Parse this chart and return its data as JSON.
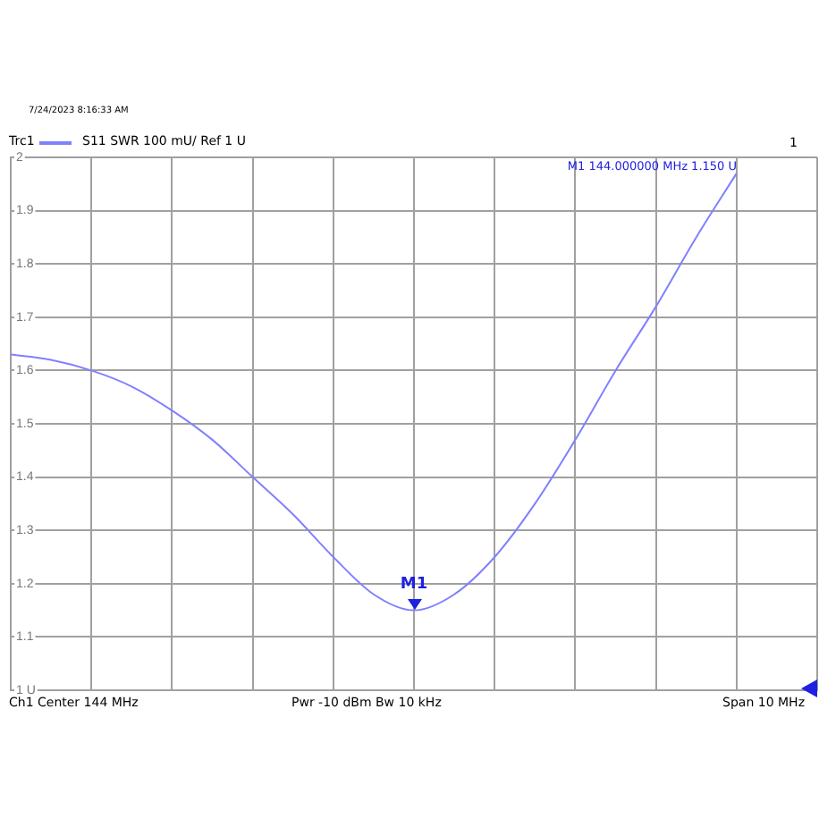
{
  "chart_data": {
    "type": "line",
    "title": "S11 SWR 100 mU/ Ref 1 U",
    "categories": [
      null,
      null,
      null,
      null,
      null,
      null,
      null,
      null,
      null,
      null,
      null,
      null,
      null,
      null,
      null,
      null,
      null,
      null,
      null,
      null,
      null
    ],
    "series": [
      {
        "name": "Trc1",
        "color": "#8080ff",
        "values": [
          1.63,
          1.62,
          1.6,
          1.57,
          1.525,
          1.47,
          1.4,
          1.33,
          1.25,
          1.18,
          1.15,
          1.18,
          1.25,
          1.35,
          1.47,
          1.6,
          1.72,
          1.85,
          1.97,
          null,
          null
        ]
      }
    ],
    "ylim": [
      1,
      2
    ],
    "yticks": [
      {
        "value": 1,
        "label": "1 U"
      },
      1.1,
      1.2,
      1.3,
      1.4,
      1.5,
      1.6,
      1.7,
      1.8,
      1.9,
      2
    ],
    "tick_labels": "y",
    "grid": true,
    "legend": "top left",
    "marker": "none",
    "line_style": "solid",
    "annotations": [
      "7/24/2023 8:16:33 AM",
      "M1 144.000000 MHz 1.150 U",
      "1",
      "Ch1 Center 144 MHz",
      "Pwr -10 dBm Bw 10 kHz",
      "Span 10 MHz",
      {
        "text": "M1",
        "y": 1.15
      }
    ]
  }
}
